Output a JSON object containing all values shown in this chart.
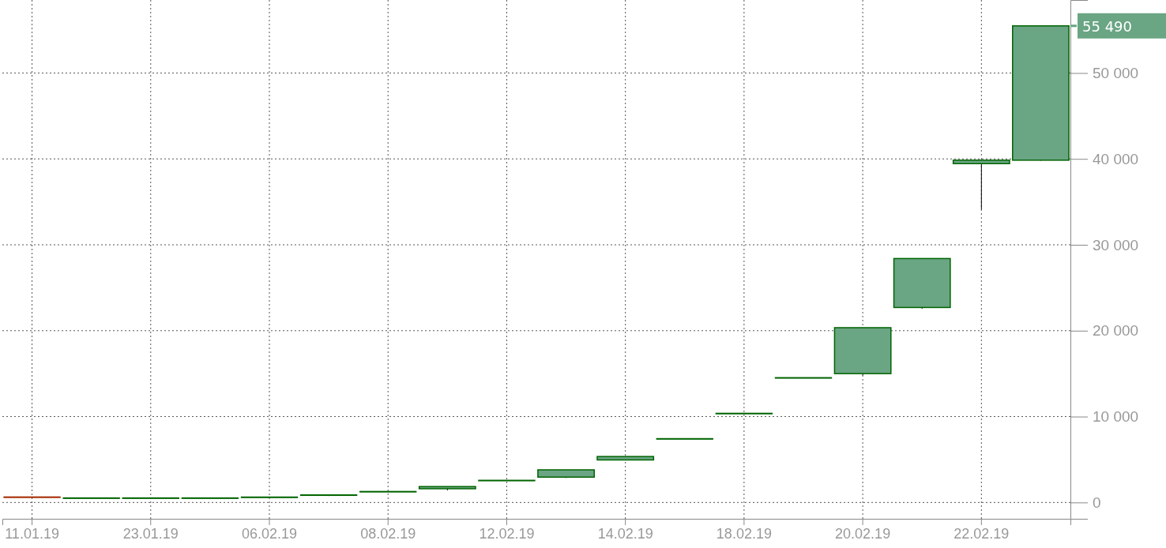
{
  "chart_data": {
    "type": "candlestick",
    "categories": [
      "11.01.19",
      null,
      "23.01.19",
      null,
      "06.02.19",
      null,
      "08.02.19",
      null,
      "12.02.19",
      null,
      "14.02.19",
      null,
      "18.02.19",
      null,
      "20.02.19",
      null,
      "22.02.19",
      null
    ],
    "ohlc": [
      [
        660,
        660,
        640,
        640
      ],
      [
        550,
        550,
        550,
        550
      ],
      [
        550,
        550,
        550,
        550
      ],
      [
        550,
        550,
        550,
        550
      ],
      [
        650,
        650,
        650,
        650
      ],
      [
        900,
        900,
        750,
        900
      ],
      [
        1300,
        1300,
        1300,
        1300
      ],
      [
        1600,
        1850,
        1400,
        1850
      ],
      [
        2600,
        2600,
        2600,
        2600
      ],
      [
        2950,
        3800,
        2850,
        3800
      ],
      [
        4950,
        5350,
        4900,
        5350
      ],
      [
        7450,
        7450,
        7450,
        7450
      ],
      [
        10400,
        10400,
        10400,
        10400
      ],
      [
        14550,
        14550,
        14550,
        14550
      ],
      [
        15000,
        20350,
        14800,
        20350
      ],
      [
        22700,
        28400,
        22550,
        28400
      ],
      [
        39450,
        39850,
        34100,
        39850
      ],
      [
        39850,
        55490,
        39800,
        55490
      ]
    ],
    "colors": [
      "#a52a00",
      "#006400",
      "#006400",
      "#006400",
      "#006400",
      "#006400",
      "#006400",
      "#006400",
      "#006400",
      "#006400",
      "#006400",
      "#006400",
      "#006400",
      "#006400",
      "#006400",
      "#006400",
      "#006400",
      "#006400"
    ],
    "ylim": [
      -1900,
      58500
    ],
    "yticks": [
      {
        "value": 0,
        "label": "0"
      },
      {
        "value": 10000,
        "label": "10 000"
      },
      {
        "value": 20000,
        "label": "20 000"
      },
      {
        "value": 30000,
        "label": "30 000"
      },
      {
        "value": 40000,
        "label": "40 000"
      },
      {
        "value": 50000,
        "label": "50 000"
      }
    ],
    "grid": true,
    "annotations": [
      "55 490"
    ]
  }
}
